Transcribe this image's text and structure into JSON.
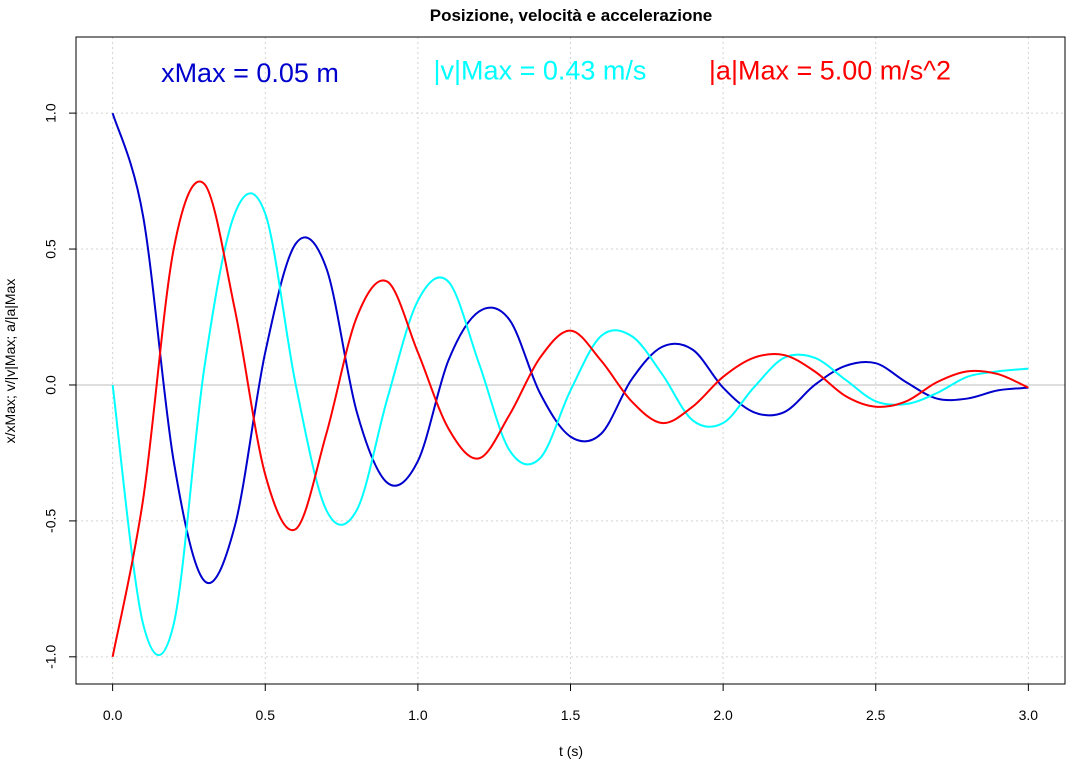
{
  "chart_data": {
    "type": "line",
    "title": "Posizione, velocità e accelerazione",
    "xlabel": "t (s)",
    "ylabel": "x/xMax;  v/|v|Max;  a/|a|Max",
    "xlim": [
      -0.12,
      3.12
    ],
    "ylim": [
      -1.1,
      1.28
    ],
    "xticks": [
      0.0,
      0.5,
      1.0,
      1.5,
      2.0,
      2.5,
      3.0
    ],
    "xtick_labels": [
      "0.0",
      "0.5",
      "1.0",
      "1.5",
      "2.0",
      "2.5",
      "3.0"
    ],
    "yticks": [
      -1.0,
      -0.5,
      0.0,
      0.5,
      1.0
    ],
    "ytick_labels": [
      "-1.0",
      "-0.5",
      "0.0",
      "0.5",
      "1.0"
    ],
    "grid": true,
    "zero_line": true,
    "annotations": [
      {
        "text": "xMax = 0.05 m",
        "color": "#0000CD",
        "x": 0.45,
        "y": 1.14
      },
      {
        "text": "|v|Max = 0.43 m/s",
        "color": "#00FFFF",
        "x": 1.4,
        "y": 1.15
      },
      {
        "text": "|a|Max = 5.00 m/s^2",
        "color": "#FF0000",
        "x": 2.35,
        "y": 1.15
      }
    ],
    "series": [
      {
        "color": "#0000CD",
        "x": [
          0.0,
          0.1,
          0.2,
          0.3,
          0.4,
          0.5,
          0.6,
          0.7,
          0.8,
          0.9,
          1.0,
          1.1,
          1.2,
          1.3,
          1.4,
          1.5,
          1.6,
          1.7,
          1.8,
          1.9,
          2.0,
          2.1,
          2.2,
          2.3,
          2.4,
          2.5,
          2.6,
          2.7,
          2.8,
          2.9,
          3.0
        ],
        "y": [
          1.0,
          0.62,
          -0.28,
          -0.72,
          -0.52,
          0.12,
          0.52,
          0.43,
          -0.1,
          -0.36,
          -0.28,
          0.09,
          0.27,
          0.24,
          -0.03,
          -0.19,
          -0.18,
          0.02,
          0.14,
          0.13,
          -0.01,
          -0.1,
          -0.1,
          0.0,
          0.07,
          0.08,
          0.01,
          -0.05,
          -0.05,
          -0.02,
          -0.01
        ]
      },
      {
        "color": "#00FFFF",
        "x": [
          0.0,
          0.1,
          0.2,
          0.3,
          0.4,
          0.5,
          0.6,
          0.7,
          0.8,
          0.9,
          1.0,
          1.1,
          1.2,
          1.3,
          1.4,
          1.5,
          1.6,
          1.7,
          1.8,
          1.9,
          2.0,
          2.1,
          2.2,
          2.3,
          2.4,
          2.5,
          2.6,
          2.7,
          2.8,
          2.9,
          3.0
        ],
        "y": [
          0.0,
          -0.88,
          -0.88,
          0.06,
          0.63,
          0.63,
          0.0,
          -0.46,
          -0.46,
          -0.05,
          0.31,
          0.38,
          0.08,
          -0.24,
          -0.27,
          -0.02,
          0.18,
          0.18,
          0.04,
          -0.13,
          -0.14,
          -0.01,
          0.1,
          0.1,
          0.02,
          -0.06,
          -0.07,
          -0.03,
          0.03,
          0.05,
          0.06
        ]
      },
      {
        "color": "#FF0000",
        "x": [
          0.0,
          0.1,
          0.2,
          0.3,
          0.4,
          0.5,
          0.6,
          0.7,
          0.8,
          0.9,
          1.0,
          1.1,
          1.2,
          1.3,
          1.4,
          1.5,
          1.6,
          1.7,
          1.8,
          1.9,
          2.0,
          2.1,
          2.2,
          2.3,
          2.4,
          2.5,
          2.6,
          2.7,
          2.8,
          2.9,
          3.0
        ],
        "y": [
          -1.0,
          -0.42,
          0.5,
          0.74,
          0.28,
          -0.33,
          -0.53,
          -0.18,
          0.25,
          0.38,
          0.12,
          -0.16,
          -0.27,
          -0.11,
          0.1,
          0.2,
          0.09,
          -0.06,
          -0.14,
          -0.08,
          0.03,
          0.1,
          0.11,
          0.05,
          -0.04,
          -0.08,
          -0.06,
          0.01,
          0.05,
          0.04,
          -0.01
        ]
      }
    ]
  }
}
